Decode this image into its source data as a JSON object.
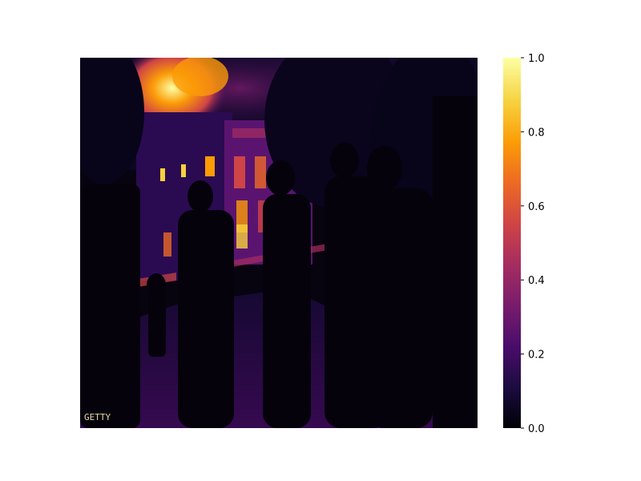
{
  "image": {
    "description_colormap": "inferno",
    "watermark": "GETTY"
  },
  "colorbar": {
    "ticks": [
      "0.0",
      "0.2",
      "0.4",
      "0.6",
      "0.8",
      "1.0"
    ],
    "values": [
      0.0,
      0.2,
      0.4,
      0.6,
      0.8,
      1.0
    ],
    "range": [
      0.0,
      1.0
    ],
    "colors": [
      "#000004",
      "#1b0c41",
      "#4a0c6b",
      "#781c6d",
      "#a52c60",
      "#cf4446",
      "#ed6925",
      "#fb9b06",
      "#f7d13d",
      "#fcffa4"
    ]
  }
}
